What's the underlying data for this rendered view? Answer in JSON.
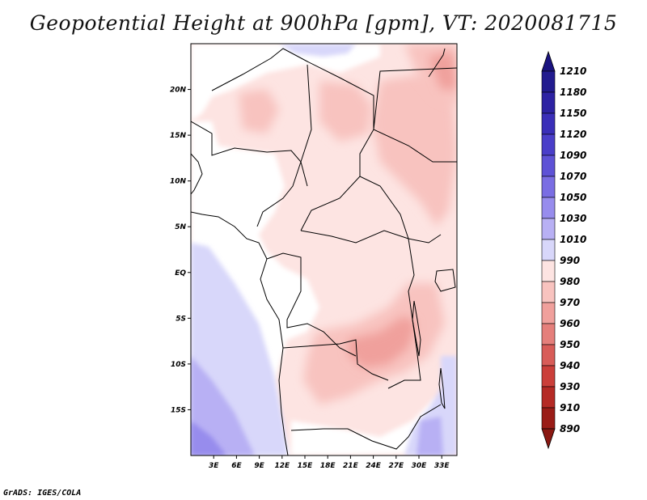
{
  "title": "Geopotential Height at 900hPa [gpm], VT: 2020081715",
  "credit": "GrADS: IGES/COLA",
  "map": {
    "lon_range": [
      0,
      35
    ],
    "lat_range": [
      -20,
      25
    ],
    "lon_ticks": [
      {
        "lon": 3,
        "label": "3E"
      },
      {
        "lon": 6,
        "label": "6E"
      },
      {
        "lon": 9,
        "label": "9E"
      },
      {
        "lon": 12,
        "label": "12E"
      },
      {
        "lon": 15,
        "label": "15E"
      },
      {
        "lon": 18,
        "label": "18E"
      },
      {
        "lon": 21,
        "label": "21E"
      },
      {
        "lon": 24,
        "label": "24E"
      },
      {
        "lon": 27,
        "label": "27E"
      },
      {
        "lon": 30,
        "label": "30E"
      },
      {
        "lon": 33,
        "label": "33E"
      }
    ],
    "lat_ticks": [
      {
        "lat": 20,
        "label": "20N"
      },
      {
        "lat": 15,
        "label": "15N"
      },
      {
        "lat": 10,
        "label": "10N"
      },
      {
        "lat": 5,
        "label": "5N"
      },
      {
        "lat": 0,
        "label": "EQ"
      },
      {
        "lat": -5,
        "label": "5S"
      },
      {
        "lat": -10,
        "label": "10S"
      },
      {
        "lat": -15,
        "label": "15S"
      }
    ]
  },
  "colorbar": {
    "levels": [
      {
        "label": "1210",
        "color": "#221b8f"
      },
      {
        "label": "1180",
        "color": "#2d22a3"
      },
      {
        "label": "1150",
        "color": "#3a2eb8"
      },
      {
        "label": "1120",
        "color": "#4a3ec9"
      },
      {
        "label": "1090",
        "color": "#5e52d6"
      },
      {
        "label": "1070",
        "color": "#7a6de3"
      },
      {
        "label": "1050",
        "color": "#978ced"
      },
      {
        "label": "1030",
        "color": "#b8b0f4"
      },
      {
        "label": "1010",
        "color": "#d8d7fa"
      },
      {
        "label": "990",
        "color": "#ffffff"
      },
      {
        "label": "980",
        "color": "#fde4e2"
      },
      {
        "label": "970",
        "color": "#f8c3bf"
      },
      {
        "label": "960",
        "color": "#f0a09c"
      },
      {
        "label": "950",
        "color": "#e57f7b"
      },
      {
        "label": "940",
        "color": "#d85c58"
      },
      {
        "label": "930",
        "color": "#cb3f3a"
      },
      {
        "label": "910",
        "color": "#b52a25"
      },
      {
        "label": "890",
        "color": "#9a1c17"
      }
    ],
    "top_arrow_color": "#1a1380",
    "bottom_arrow_color": "#8a1812"
  }
}
